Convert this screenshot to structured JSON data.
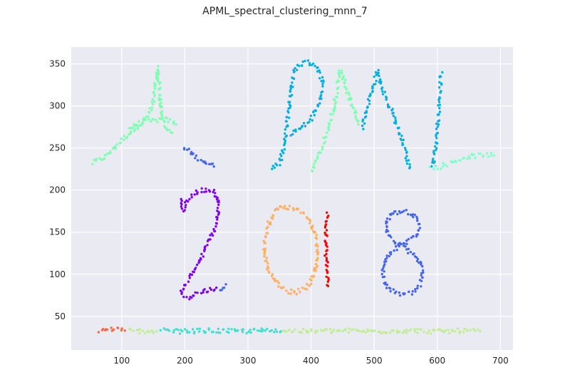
{
  "chart_data": {
    "type": "scatter",
    "title": "APML_spectral_clustering_mnn_7",
    "xlabel": "",
    "ylabel": "",
    "xlim": [
      20,
      720
    ],
    "ylim": [
      10,
      370
    ],
    "xticks": [
      100,
      200,
      300,
      400,
      500,
      600,
      700
    ],
    "yticks": [
      50,
      100,
      150,
      200,
      250,
      300,
      350
    ],
    "grid": true,
    "background": "#eaeaf2",
    "series": [
      {
        "color": "#7fffb0",
        "strokes": [
          [
            [
              53,
              232
            ],
            [
              75,
              240
            ],
            [
              95,
              256
            ],
            [
              115,
              270
            ],
            [
              132,
              280
            ],
            [
              145,
              292
            ],
            [
              152,
              312
            ],
            [
              155,
              335
            ],
            [
              157,
              345
            ],
            [
              160,
              320
            ],
            [
              162,
              298
            ],
            [
              166,
              282
            ],
            [
              172,
              272
            ],
            [
              180,
              268
            ]
          ],
          [
            [
              112,
              274
            ],
            [
              130,
              280
            ],
            [
              148,
              282
            ],
            [
              162,
              284
            ],
            [
              175,
              283
            ],
            [
              186,
              278
            ]
          ],
          [
            [
              400,
              222
            ],
            [
              410,
              238
            ],
            [
              420,
              255
            ],
            [
              428,
              275
            ],
            [
              436,
              298
            ],
            [
              442,
              322
            ],
            [
              446,
              343
            ],
            [
              450,
              338
            ],
            [
              456,
              322
            ],
            [
              463,
              305
            ],
            [
              470,
              292
            ],
            [
              475,
              278
            ]
          ]
        ]
      },
      {
        "color": "#4466ee",
        "strokes": [
          [
            [
              197,
              250
            ],
            [
              210,
              244
            ],
            [
              222,
              238
            ],
            [
              235,
              232
            ],
            [
              246,
              228
            ]
          ],
          [
            [
              255,
              82
            ],
            [
              265,
              88
            ]
          ],
          [
            [
              528,
              172
            ],
            [
              545,
              176
            ],
            [
              562,
              172
            ],
            [
              572,
              160
            ],
            [
              568,
              148
            ],
            [
              556,
              140
            ],
            [
              542,
              135
            ],
            [
              528,
              128
            ],
            [
              518,
              118
            ],
            [
              514,
              104
            ],
            [
              514,
              92
            ],
            [
              522,
              83
            ],
            [
              535,
              77
            ],
            [
              550,
              76
            ],
            [
              565,
              80
            ],
            [
              574,
              90
            ],
            [
              576,
              104
            ],
            [
              572,
              116
            ],
            [
              562,
              124
            ],
            [
              550,
              130
            ],
            [
              538,
              136
            ],
            [
              526,
              144
            ],
            [
              520,
              154
            ],
            [
              520,
              164
            ],
            [
              528,
              172
            ]
          ]
        ]
      },
      {
        "color": "#00b0e0",
        "strokes": [
          [
            [
              340,
              225
            ],
            [
              350,
              232
            ],
            [
              356,
              248
            ],
            [
              360,
              265
            ],
            [
              363,
              285
            ],
            [
              366,
              305
            ],
            [
              369,
              322
            ],
            [
              372,
              340
            ],
            [
              378,
              347
            ],
            [
              392,
              352
            ],
            [
              405,
              350
            ],
            [
              415,
              340
            ],
            [
              418,
              324
            ],
            [
              413,
              306
            ],
            [
              405,
              290
            ],
            [
              395,
              280
            ],
            [
              385,
              274
            ],
            [
              375,
              270
            ],
            [
              368,
              265
            ]
          ],
          [
            [
              482,
              275
            ],
            [
              487,
              292
            ],
            [
              493,
              310
            ],
            [
              500,
              326
            ],
            [
              505,
              342
            ],
            [
              508,
              335
            ],
            [
              515,
              318
            ],
            [
              522,
              302
            ],
            [
              530,
              290
            ],
            [
              538,
              272
            ],
            [
              548,
              250
            ],
            [
              556,
              226
            ]
          ],
          [
            [
              593,
              228
            ],
            [
              597,
              248
            ],
            [
              600,
              270
            ],
            [
              602,
              292
            ],
            [
              604,
              315
            ],
            [
              606,
              335
            ],
            [
              608,
              340
            ]
          ]
        ]
      },
      {
        "color": "#80ffc8",
        "strokes": [
          [
            [
              590,
              226
            ],
            [
              605,
              228
            ],
            [
              620,
              232
            ],
            [
              635,
              236
            ],
            [
              650,
              240
            ]
          ],
          [
            [
              650,
              240
            ],
            [
              665,
              241
            ],
            [
              680,
              242
            ],
            [
              690,
              241
            ]
          ]
        ]
      },
      {
        "color": "#8000f0",
        "strokes": [
          [
            [
              192,
              188
            ],
            [
              198,
              176
            ],
            [
              203,
              187
            ],
            [
              210,
              192
            ],
            [
              222,
              199
            ],
            [
              235,
              201
            ],
            [
              245,
              199
            ],
            [
              252,
              188
            ],
            [
              253,
              172
            ],
            [
              247,
              155
            ],
            [
              237,
              138
            ],
            [
              227,
              122
            ],
            [
              217,
              108
            ],
            [
              208,
              96
            ],
            [
              200,
              86
            ],
            [
              194,
              78
            ],
            [
              198,
              74
            ],
            [
              205,
              73
            ],
            [
              215,
              76
            ],
            [
              230,
              80
            ],
            [
              243,
              82
            ],
            [
              250,
              84
            ]
          ]
        ]
      },
      {
        "color": "#ffb060",
        "strokes": [
          [
            [
              346,
              178
            ],
            [
              362,
              180
            ],
            [
              376,
              178
            ],
            [
              390,
              172
            ],
            [
              402,
              158
            ],
            [
              408,
              142
            ],
            [
              410,
              125
            ],
            [
              408,
              108
            ],
            [
              402,
              94
            ],
            [
              392,
              84
            ],
            [
              378,
              79
            ],
            [
              364,
              80
            ],
            [
              350,
              86
            ],
            [
              338,
              96
            ],
            [
              330,
              110
            ],
            [
              326,
              126
            ],
            [
              327,
              142
            ],
            [
              332,
              158
            ],
            [
              340,
              170
            ],
            [
              346,
              178
            ]
          ]
        ]
      },
      {
        "color": "#ff0000",
        "strokes": [
          [
            [
              426,
              172
            ],
            [
              425,
              160
            ],
            [
              424,
              148
            ],
            [
              423,
              136
            ],
            [
              424,
              122
            ],
            [
              425,
              110
            ],
            [
              426,
              98
            ],
            [
              427,
              86
            ]
          ]
        ]
      },
      {
        "color": "#ff6640",
        "strokes": [
          [
            [
              65,
              32
            ],
            [
              75,
              34
            ],
            [
              85,
              35
            ],
            [
              95,
              34
            ],
            [
              105,
              33
            ]
          ]
        ]
      },
      {
        "color": "#c0ee90",
        "strokes": [
          [
            [
              113,
              33
            ],
            [
              125,
              32
            ],
            [
              140,
              33
            ],
            [
              155,
              32
            ]
          ],
          [
            [
              355,
              33
            ],
            [
              400,
              32
            ],
            [
              450,
              33
            ],
            [
              500,
              32
            ],
            [
              550,
              33
            ],
            [
              600,
              32
            ],
            [
              650,
              33
            ],
            [
              668,
              32
            ]
          ]
        ]
      },
      {
        "color": "#40e0d0",
        "strokes": [
          [
            [
              163,
              33
            ],
            [
              200,
              32
            ],
            [
              240,
              33
            ],
            [
              280,
              32
            ],
            [
              320,
              33
            ],
            [
              352,
              32
            ]
          ]
        ]
      }
    ]
  }
}
